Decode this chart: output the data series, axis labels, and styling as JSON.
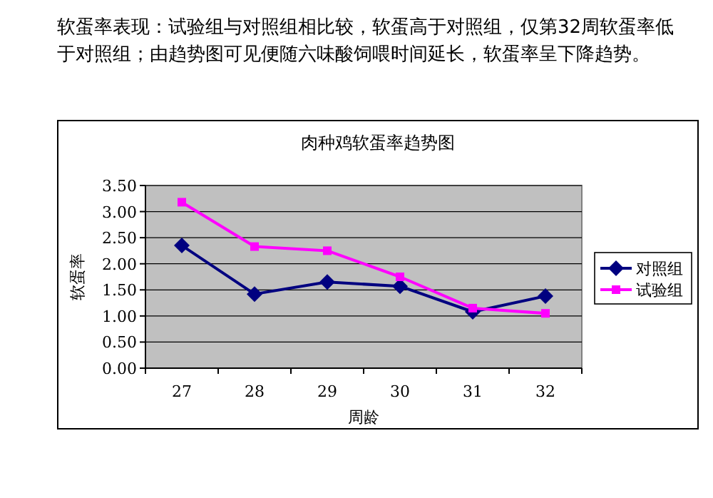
{
  "chart_data": {
    "type": "line",
    "title": "肉种鸡软蛋率趋势图",
    "xlabel": "周龄",
    "ylabel": "软蛋率",
    "annotations": [
      "软蛋率表现：试验组与对照组相比较，软蛋高于对照组，仅第32周软蛋率低于对照组；由趋势图可见便随六味酸饲喂时间延长，软蛋率呈下降趋势。"
    ],
    "categories": [
      "27",
      "28",
      "29",
      "30",
      "31",
      "32"
    ],
    "series": [
      {
        "name": "对照组",
        "color": "#000080",
        "marker": "diamond",
        "values": [
          2.35,
          1.42,
          1.65,
          1.57,
          1.08,
          1.38
        ]
      },
      {
        "name": "试验组",
        "color": "#ff00ff",
        "marker": "square",
        "values": [
          3.18,
          2.33,
          2.25,
          1.75,
          1.15,
          1.05
        ]
      }
    ],
    "ylim": [
      0,
      3.5
    ],
    "yticks": [
      {
        "value": 0,
        "label": "0.00"
      },
      {
        "value": 0.5,
        "label": "0.50"
      },
      {
        "value": 1,
        "label": "1.00"
      },
      {
        "value": 1.5,
        "label": "1.50"
      },
      {
        "value": 2,
        "label": "2.00"
      },
      {
        "value": 2.5,
        "label": "2.50"
      },
      {
        "value": 3,
        "label": "3.00"
      },
      {
        "value": 3.5,
        "label": "3.50"
      }
    ],
    "grid": "y",
    "legend": "right"
  }
}
